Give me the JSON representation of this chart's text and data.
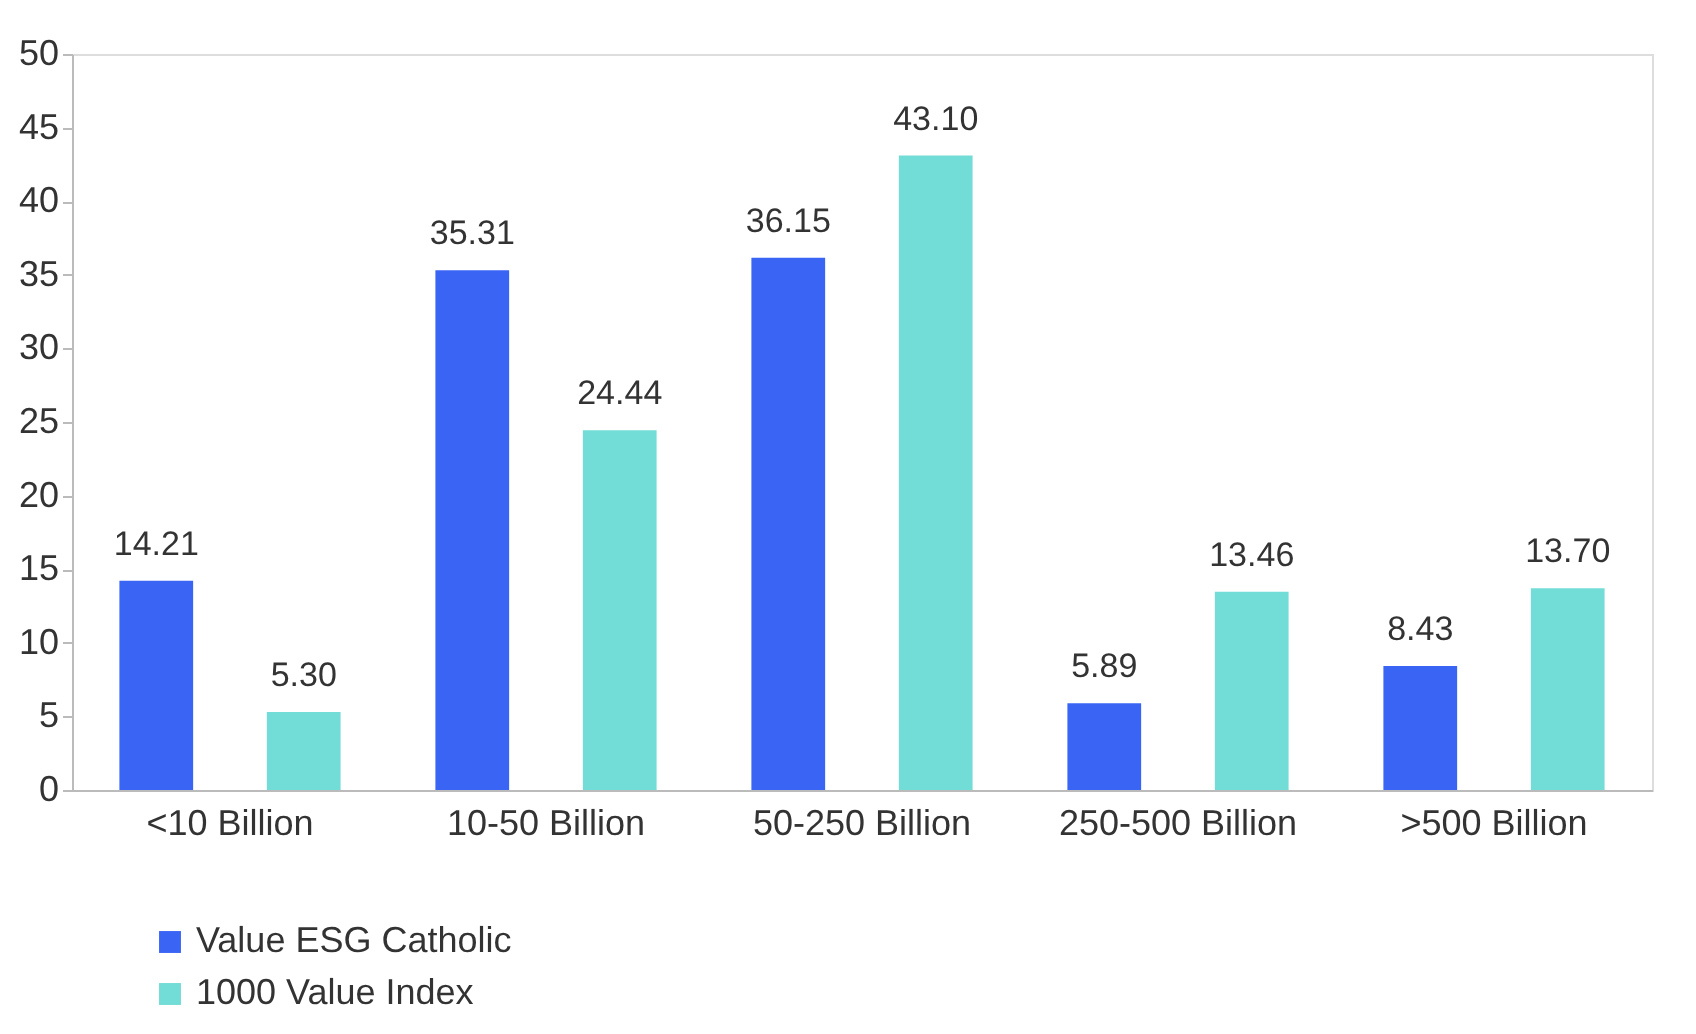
{
  "chart_data": {
    "type": "bar",
    "categories": [
      "<10 Billion",
      "10-50 Billion",
      "50-250 Billion",
      "250-500 Billion",
      ">500 Billion"
    ],
    "series": [
      {
        "name": "Value ESG Catholic",
        "color": "#3a64f4",
        "values": [
          14.21,
          35.31,
          36.15,
          5.89,
          8.43
        ],
        "value_labels": [
          "14.21",
          "35.31",
          "36.15",
          "5.89",
          "8.43"
        ]
      },
      {
        "name": "1000 Value Index",
        "color": "#72dcd6",
        "values": [
          5.3,
          24.44,
          43.1,
          13.46,
          13.7
        ],
        "value_labels": [
          "5.30",
          "24.44",
          "43.10",
          "13.46",
          "13.70"
        ]
      }
    ],
    "ylim": [
      0,
      50
    ],
    "yticks": [
      0,
      5,
      10,
      15,
      20,
      25,
      30,
      35,
      40,
      45,
      50
    ],
    "grid": false,
    "legend": "bottom left",
    "data_labels": true
  }
}
